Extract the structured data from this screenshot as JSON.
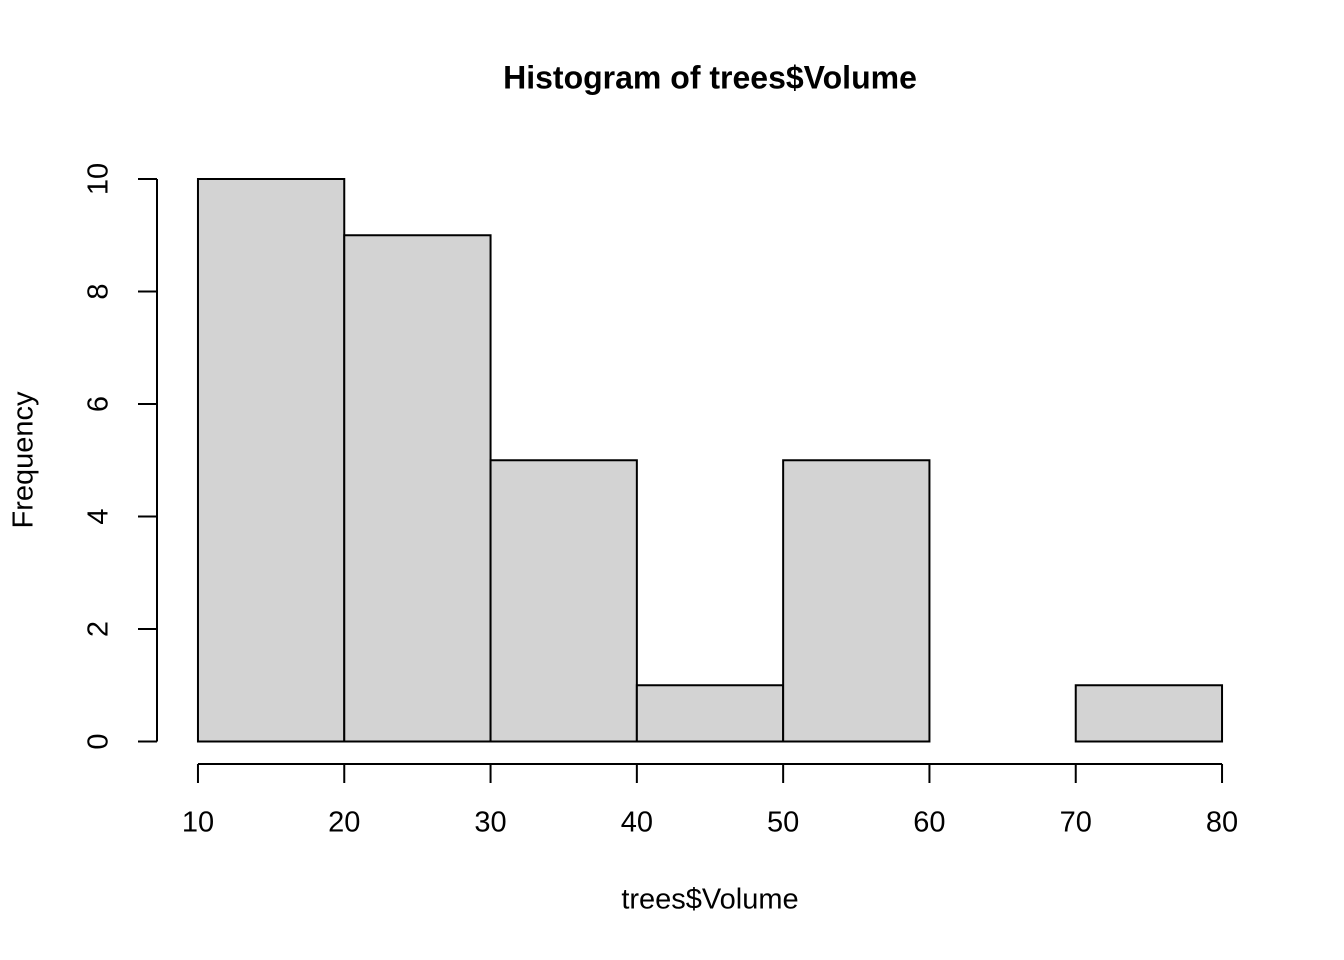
{
  "chart_data": {
    "type": "histogram",
    "title": "Histogram of trees$Volume",
    "x_label": "trees$Volume",
    "y_label": "Frequency",
    "bins": [
      10,
      20,
      30,
      40,
      50,
      60,
      70,
      80
    ],
    "values": [
      10,
      9,
      5,
      1,
      5,
      0,
      1
    ],
    "color": "#d3d3d3",
    "xlim": [
      7.2,
      82.8
    ],
    "ylim": [
      -0.4,
      10.4
    ],
    "xticks": [
      10,
      20,
      30,
      40,
      50,
      60,
      70,
      80
    ],
    "yticks": [
      0,
      2,
      4,
      6,
      8,
      10
    ]
  }
}
